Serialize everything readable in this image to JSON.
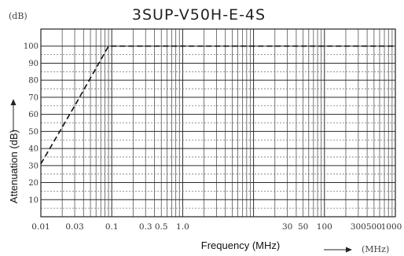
{
  "chart_data": {
    "type": "line",
    "title": "3SUP-V50H-E-4S",
    "xlabel": "Frequency (MHz)",
    "ylabel": "Attenuation (dB)",
    "x_unit": "(MHz)",
    "y_unit": "(dB)",
    "x_scale": "log",
    "xlim": [
      0.01,
      1000
    ],
    "ylim": [
      0,
      110
    ],
    "grid": true,
    "x_ticks": [
      {
        "value": 0.01,
        "label": "0.01"
      },
      {
        "value": 0.03,
        "label": "0.03"
      },
      {
        "value": 0.1,
        "label": "0.1"
      },
      {
        "value": 0.3,
        "label": "0.3"
      },
      {
        "value": 0.5,
        "label": "0.5"
      },
      {
        "value": 1,
        "label": "1.0"
      },
      {
        "value": 30,
        "label": "30"
      },
      {
        "value": 50,
        "label": "50"
      },
      {
        "value": 100,
        "label": "100"
      },
      {
        "value": 300,
        "label": "300"
      },
      {
        "value": 500,
        "label": "500"
      },
      {
        "value": 1000,
        "label": "1000"
      }
    ],
    "y_ticks": [
      {
        "value": 10,
        "label": "10"
      },
      {
        "value": 20,
        "label": "20"
      },
      {
        "value": 30,
        "label": "30"
      },
      {
        "value": 40,
        "label": "40"
      },
      {
        "value": 50,
        "label": "50"
      },
      {
        "value": 60,
        "label": "60"
      },
      {
        "value": 70,
        "label": "70"
      },
      {
        "value": 80,
        "label": "80"
      },
      {
        "value": 90,
        "label": "90"
      },
      {
        "value": 100,
        "label": "100"
      }
    ],
    "series": [
      {
        "style": "dashed",
        "x": [
          0.01,
          0.03,
          0.09,
          0.1,
          1,
          10,
          100,
          1000
        ],
        "y": [
          31,
          65,
          100,
          100,
          100,
          100,
          100,
          100
        ]
      }
    ]
  }
}
